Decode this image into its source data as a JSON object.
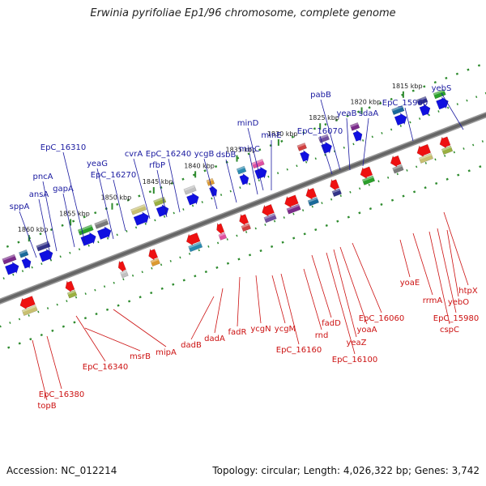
{
  "title": "Erwinia pyrifoliae Ep1/96 chromosome, complete genome",
  "accession": "Accession: NC_012214",
  "summary": "Topology: circular; Length: 4,026,322 bp; Genes: 3,742",
  "colors": {
    "top_label": "#1a1aa0",
    "bottom_label": "#cc1111",
    "forward_strand": "#1010e0",
    "reverse_strand": "#ee1111",
    "backbone": "#666666",
    "tick": "#2e8b2e"
  },
  "ticks": [
    "1815 kbp",
    "1820 kbp",
    "1825 kbp",
    "1830 kbp",
    "1835 kbp",
    "1840 kbp",
    "1845 kbp",
    "1850 kbp",
    "1855 kbp",
    "1860 kbp"
  ],
  "top_genes": [
    "yebS",
    "EpC_15960",
    "sdaA",
    "yeaB",
    "pabB",
    "EpC_16070",
    "minE",
    "minD",
    "minC",
    "dsbB",
    "ycgB",
    "EpC_16240",
    "rfbP",
    "cvrA",
    "EpC_16270",
    "yeaG",
    "EpC_16310",
    "gapA",
    "pncA",
    "ansA",
    "sppA"
  ],
  "bottom_genes": [
    "htpX",
    "EpC_15980",
    "yebO",
    "cspC",
    "rrmA",
    "yoaE",
    "EpC_16060",
    "yoaA",
    "yeaZ",
    "EpC_16100",
    "fadD",
    "rnd",
    "EpC_16160",
    "ycgM",
    "ycgN",
    "fadR",
    "dadA",
    "dadB",
    "mipA",
    "msrB",
    "EpC_16340",
    "EpC_16380",
    "topB"
  ]
}
